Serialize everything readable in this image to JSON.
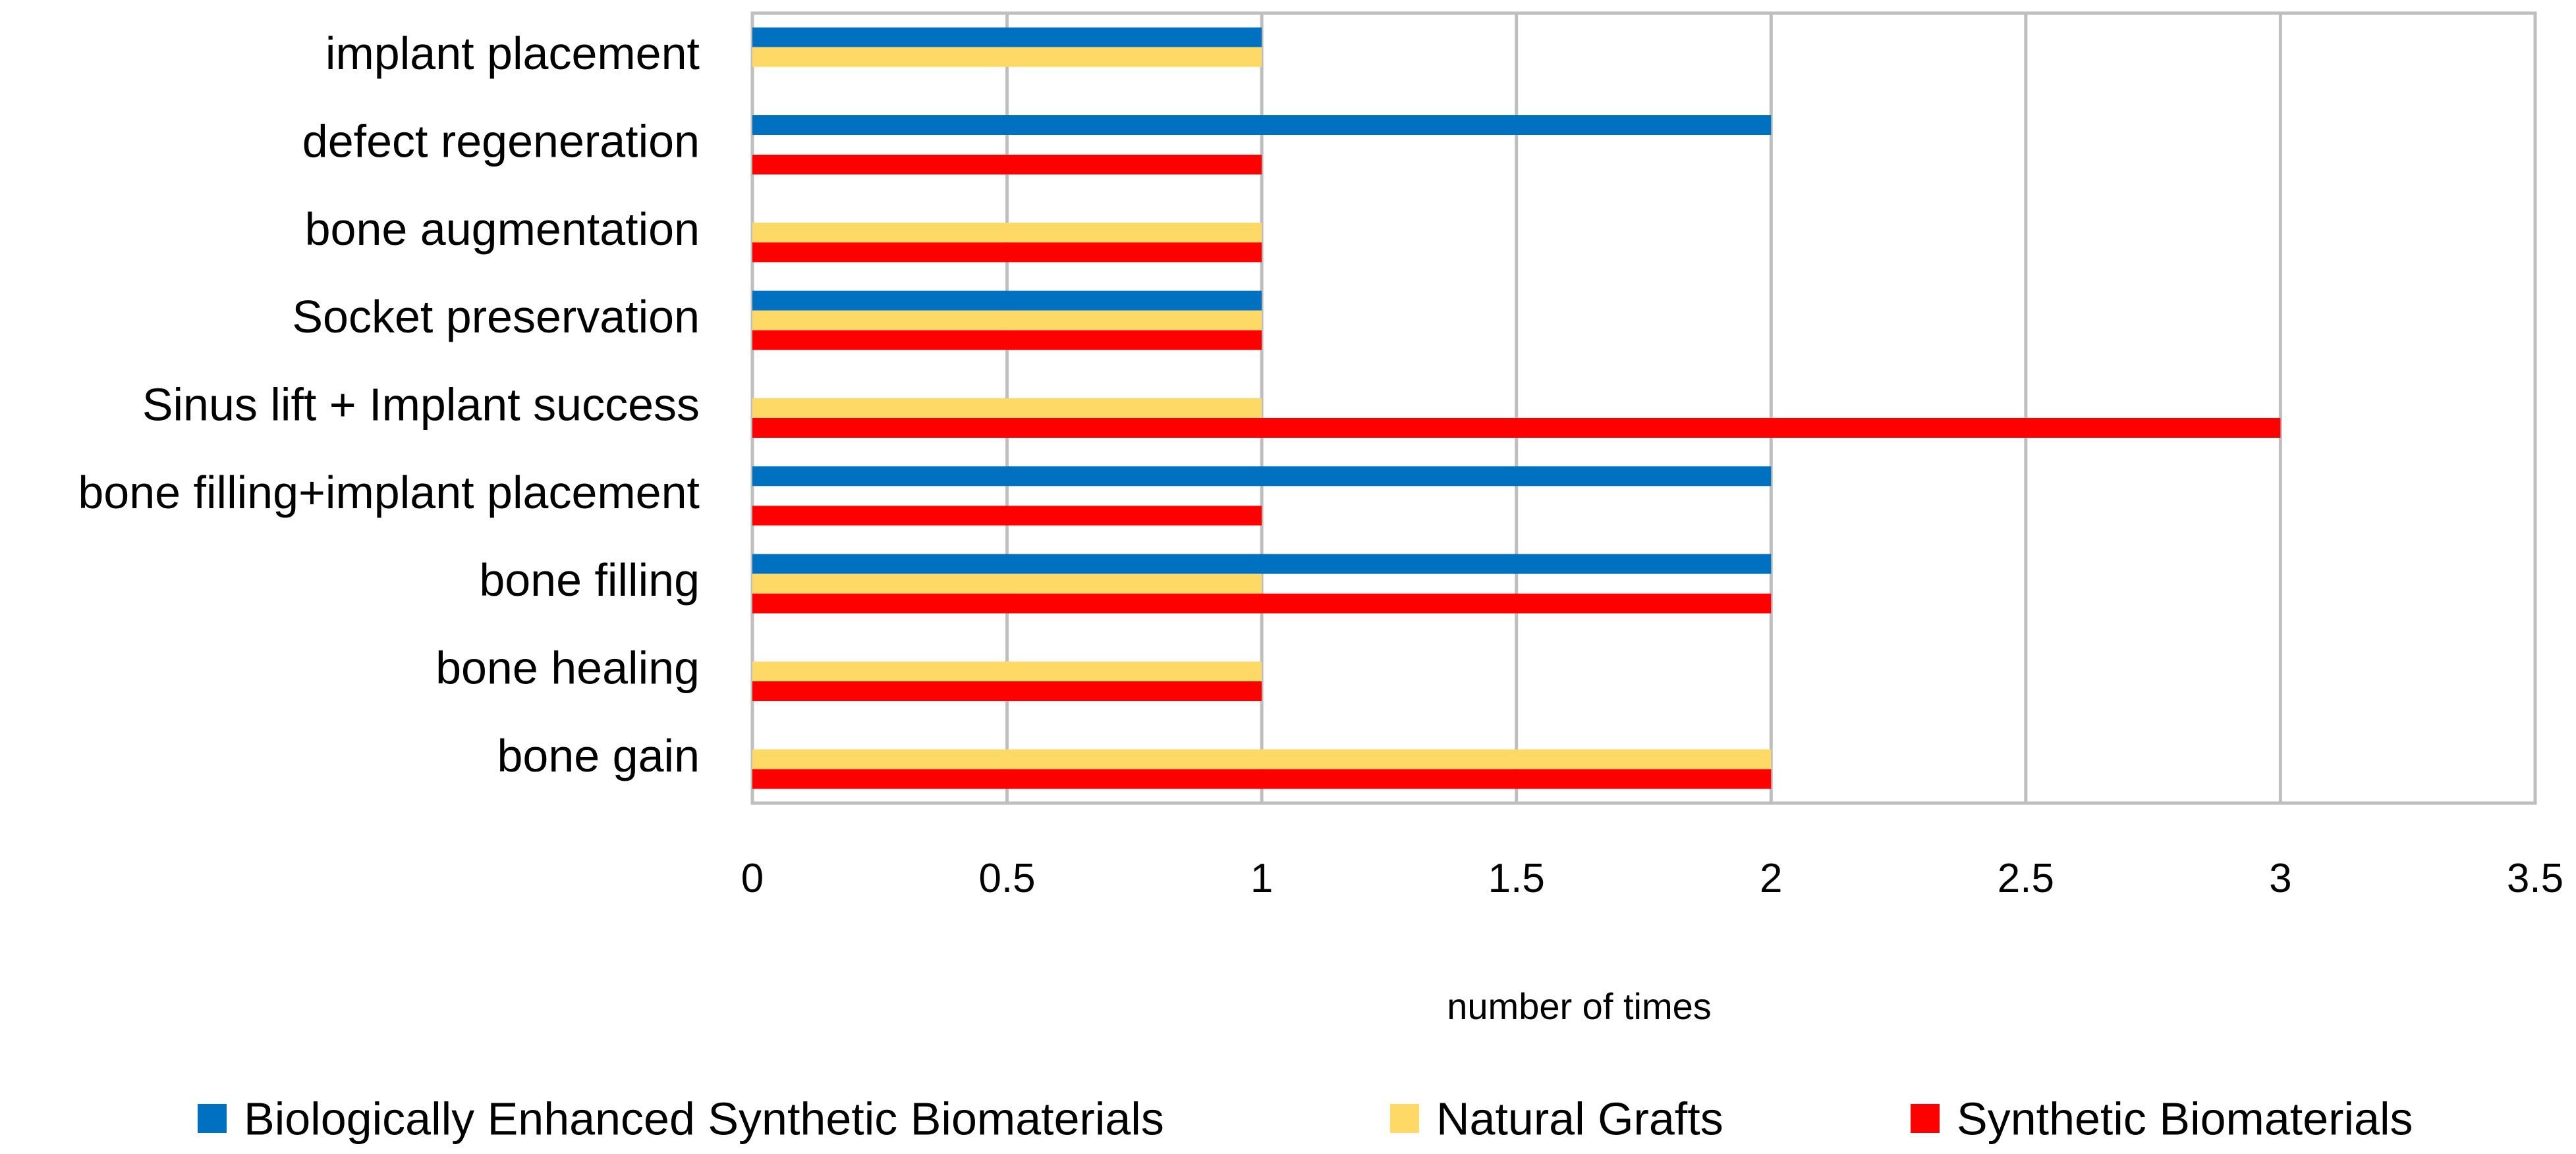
{
  "chart_data": {
    "type": "bar",
    "orientation": "horizontal",
    "title": "",
    "xlabel": "number of times",
    "ylabel": "",
    "xlim": [
      0,
      3.5
    ],
    "x_ticks": [
      "0",
      "0.5",
      "1",
      "1.5",
      "2",
      "2.5",
      "3",
      "3.5"
    ],
    "grid": true,
    "legend_position": "bottom",
    "categories": [
      "implant placement",
      "defect regeneration",
      "bone augmentation",
      "Socket preservation",
      "Sinus lift + Implant success",
      "bone filling+implant placement",
      "bone filling",
      "bone healing",
      "bone gain"
    ],
    "series": [
      {
        "name": "Biologically Enhanced Synthetic Biomaterials",
        "color": "#0070C0",
        "values": [
          1,
          2,
          0,
          1,
          0,
          2,
          2,
          0,
          0
        ]
      },
      {
        "name": "Natural Grafts",
        "color": "#FFD966",
        "values": [
          1,
          0,
          1,
          1,
          1,
          0,
          1,
          1,
          2
        ]
      },
      {
        "name": "Synthetic Biomaterials",
        "color": "#FF0000",
        "values": [
          0,
          1,
          1,
          1,
          3,
          1,
          2,
          1,
          2
        ]
      }
    ]
  }
}
